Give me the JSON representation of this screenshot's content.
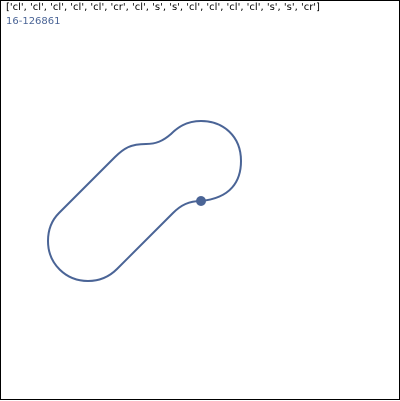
{
  "header": {
    "sequence_text": "['cl', 'cl', 'cl', 'cl', 'cl', 'cr', 'cl', 's', 's', 'cl', 'cl', 'cl', 'cl', 's', 's', 'cr']",
    "id_text": "16-126861"
  },
  "colors": {
    "track": "#4a6496",
    "marker": "#4a6496",
    "id_text": "#4a6496",
    "border": "#000000"
  },
  "track": {
    "segments": [
      "cl",
      "cl",
      "cl",
      "cl",
      "cl",
      "cr",
      "cl",
      "s",
      "s",
      "cl",
      "cl",
      "cl",
      "cl",
      "s",
      "s",
      "cr"
    ]
  }
}
